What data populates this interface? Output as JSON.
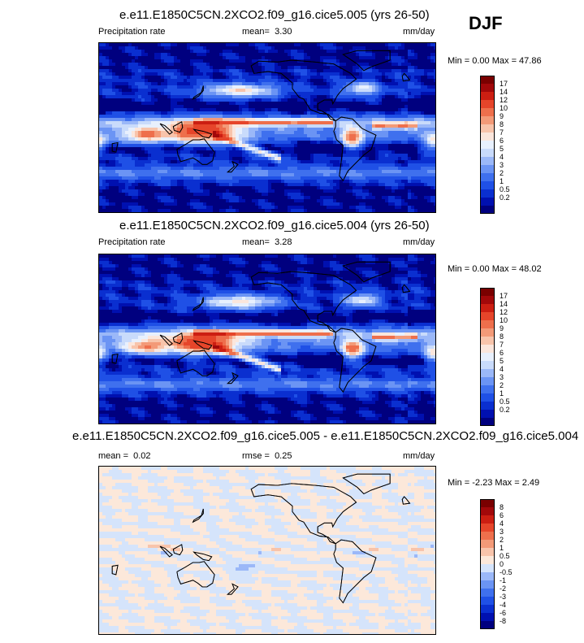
{
  "season": "DJF",
  "colors": {
    "precip": [
      "#00007f",
      "#0010b0",
      "#0a2fd0",
      "#1f50e6",
      "#3f70ee",
      "#6b94f4",
      "#9bb8f8",
      "#c9dbfb",
      "#e8f0fd",
      "#fbe6dc",
      "#f8c4ab",
      "#f39a78",
      "#ee6f4c",
      "#e6452a",
      "#cc1e12",
      "#a2080a",
      "#7a0000"
    ],
    "diff": [
      "#00007f",
      "#0010b0",
      "#0a2fd0",
      "#1f50e6",
      "#3f70ee",
      "#6b94f4",
      "#9bb8f8",
      "#d5e4fb",
      "#fce8da",
      "#f8c4ab",
      "#f39a78",
      "#ee6f4c",
      "#e6452a",
      "#cc1e12",
      "#a2080a",
      "#7a0000"
    ]
  },
  "panels": [
    {
      "title": "e.e11.E1850C5CN.2XCO2.f09_g16.cice5.005 (yrs 26-50)",
      "left_label": "Precipitation rate",
      "stat1_label": "mean=",
      "stat1_value": "3.30",
      "stat2_label": "",
      "stat2_value": "",
      "units": "mm/day",
      "min_max": "Min =  0.00 Max =  47.86",
      "scale": "precip",
      "levels": [
        "17",
        "14",
        "12",
        "10",
        "9",
        "8",
        "7",
        "6",
        "5",
        "4",
        "3",
        "2",
        "1",
        "0.5",
        "0.2"
      ]
    },
    {
      "title": "e.e11.E1850C5CN.2XCO2.f09_g16.cice5.004 (yrs 26-50)",
      "left_label": "Precipitation rate",
      "stat1_label": "mean=",
      "stat1_value": "3.28",
      "stat2_label": "",
      "stat2_value": "",
      "units": "mm/day",
      "min_max": "Min =  0.00 Max =  48.02",
      "scale": "precip",
      "levels": [
        "17",
        "14",
        "12",
        "10",
        "9",
        "8",
        "7",
        "6",
        "5",
        "4",
        "3",
        "2",
        "1",
        "0.5",
        "0.2"
      ]
    },
    {
      "title": "e.e11.E1850C5CN.2XCO2.f09_g16.cice5.005 - e.e11.E1850C5CN.2XCO2.f09_g16.cice5.004",
      "left_label": "",
      "stat1_label": "mean =",
      "stat1_value": "0.02",
      "stat2_label": "rmse =",
      "stat2_value": "0.25",
      "units": "mm/day",
      "min_max": "Min =  -2.23 Max =  2.49",
      "scale": "diff",
      "levels": [
        "8",
        "6",
        "4",
        "3",
        "2",
        "1",
        "0.5",
        "0",
        "-0.5",
        "-1",
        "-2",
        "-3",
        "-4",
        "-6",
        "-8"
      ]
    }
  ],
  "chart_data": [
    {
      "type": "heatmap",
      "title": "e.e11.E1850C5CN.2XCO2.f09_g16.cice5.005 (yrs 26-50)",
      "variable": "Precipitation rate",
      "units": "mm/day",
      "mean": 3.3,
      "min": 0.0,
      "max": 47.86,
      "contour_levels": [
        0.2,
        0.5,
        1,
        2,
        3,
        4,
        5,
        6,
        7,
        8,
        9,
        10,
        12,
        14,
        17
      ]
    },
    {
      "type": "heatmap",
      "title": "e.e11.E1850C5CN.2XCO2.f09_g16.cice5.004 (yrs 26-50)",
      "variable": "Precipitation rate",
      "units": "mm/day",
      "mean": 3.28,
      "min": 0.0,
      "max": 48.02,
      "contour_levels": [
        0.2,
        0.5,
        1,
        2,
        3,
        4,
        5,
        6,
        7,
        8,
        9,
        10,
        12,
        14,
        17
      ]
    },
    {
      "type": "heatmap",
      "title": "e.e11.E1850C5CN.2XCO2.f09_g16.cice5.005 - e.e11.E1850C5CN.2XCO2.f09_g16.cice5.004",
      "units": "mm/day",
      "mean": 0.02,
      "rmse": 0.25,
      "min": -2.23,
      "max": 2.49,
      "contour_levels": [
        -8,
        -6,
        -4,
        -3,
        -2,
        -1,
        -0.5,
        0,
        0.5,
        1,
        2,
        3,
        4,
        6,
        8
      ]
    }
  ]
}
